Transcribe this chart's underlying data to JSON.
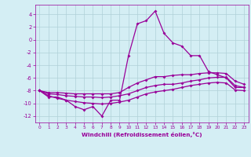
{
  "xlabel": "Windchill (Refroidissement éolien,°C)",
  "x": [
    0,
    1,
    2,
    3,
    4,
    5,
    6,
    7,
    8,
    9,
    10,
    11,
    12,
    13,
    14,
    15,
    16,
    17,
    18,
    19,
    20,
    21,
    22,
    23
  ],
  "line1": [
    -8.0,
    -9.0,
    -9.0,
    -9.5,
    -10.5,
    -11.0,
    -10.5,
    -12.0,
    -9.5,
    -9.5,
    -2.5,
    2.5,
    3.0,
    4.5,
    1.0,
    -0.5,
    -1.0,
    -2.5,
    -2.5,
    -5.0,
    -5.5,
    -6.0,
    -7.5,
    -7.5
  ],
  "line2": [
    -8.0,
    -8.3,
    -8.3,
    -8.4,
    -8.5,
    -8.5,
    -8.5,
    -8.5,
    -8.5,
    -8.3,
    -7.5,
    -6.8,
    -6.3,
    -5.8,
    -5.8,
    -5.6,
    -5.5,
    -5.5,
    -5.3,
    -5.2,
    -5.2,
    -5.3,
    -6.5,
    -7.0
  ],
  "line3": [
    -8.0,
    -8.5,
    -8.6,
    -8.8,
    -8.9,
    -9.0,
    -9.0,
    -9.1,
    -9.0,
    -8.8,
    -8.5,
    -8.0,
    -7.5,
    -7.2,
    -7.0,
    -7.0,
    -6.8,
    -6.5,
    -6.3,
    -6.0,
    -5.9,
    -5.9,
    -7.2,
    -7.5
  ],
  "line4": [
    -8.0,
    -8.8,
    -9.2,
    -9.5,
    -9.7,
    -9.9,
    -10.0,
    -10.1,
    -10.0,
    -9.8,
    -9.5,
    -9.0,
    -8.5,
    -8.2,
    -8.0,
    -7.8,
    -7.5,
    -7.2,
    -7.0,
    -6.8,
    -6.7,
    -6.8,
    -7.9,
    -8.0
  ],
  "bg_color": "#d4eef4",
  "line_color": "#990099",
  "grid_color": "#b0d0d8",
  "ylim": [
    -13,
    5.5
  ],
  "xlim": [
    -0.5,
    23.5
  ],
  "yticks": [
    4,
    2,
    0,
    -2,
    -4,
    -6,
    -8,
    -10,
    -12
  ],
  "xticks": [
    0,
    1,
    2,
    3,
    4,
    5,
    6,
    7,
    8,
    9,
    10,
    11,
    12,
    13,
    14,
    15,
    16,
    17,
    18,
    19,
    20,
    21,
    22,
    23
  ],
  "figsize": [
    3.2,
    2.0
  ],
  "dpi": 100
}
